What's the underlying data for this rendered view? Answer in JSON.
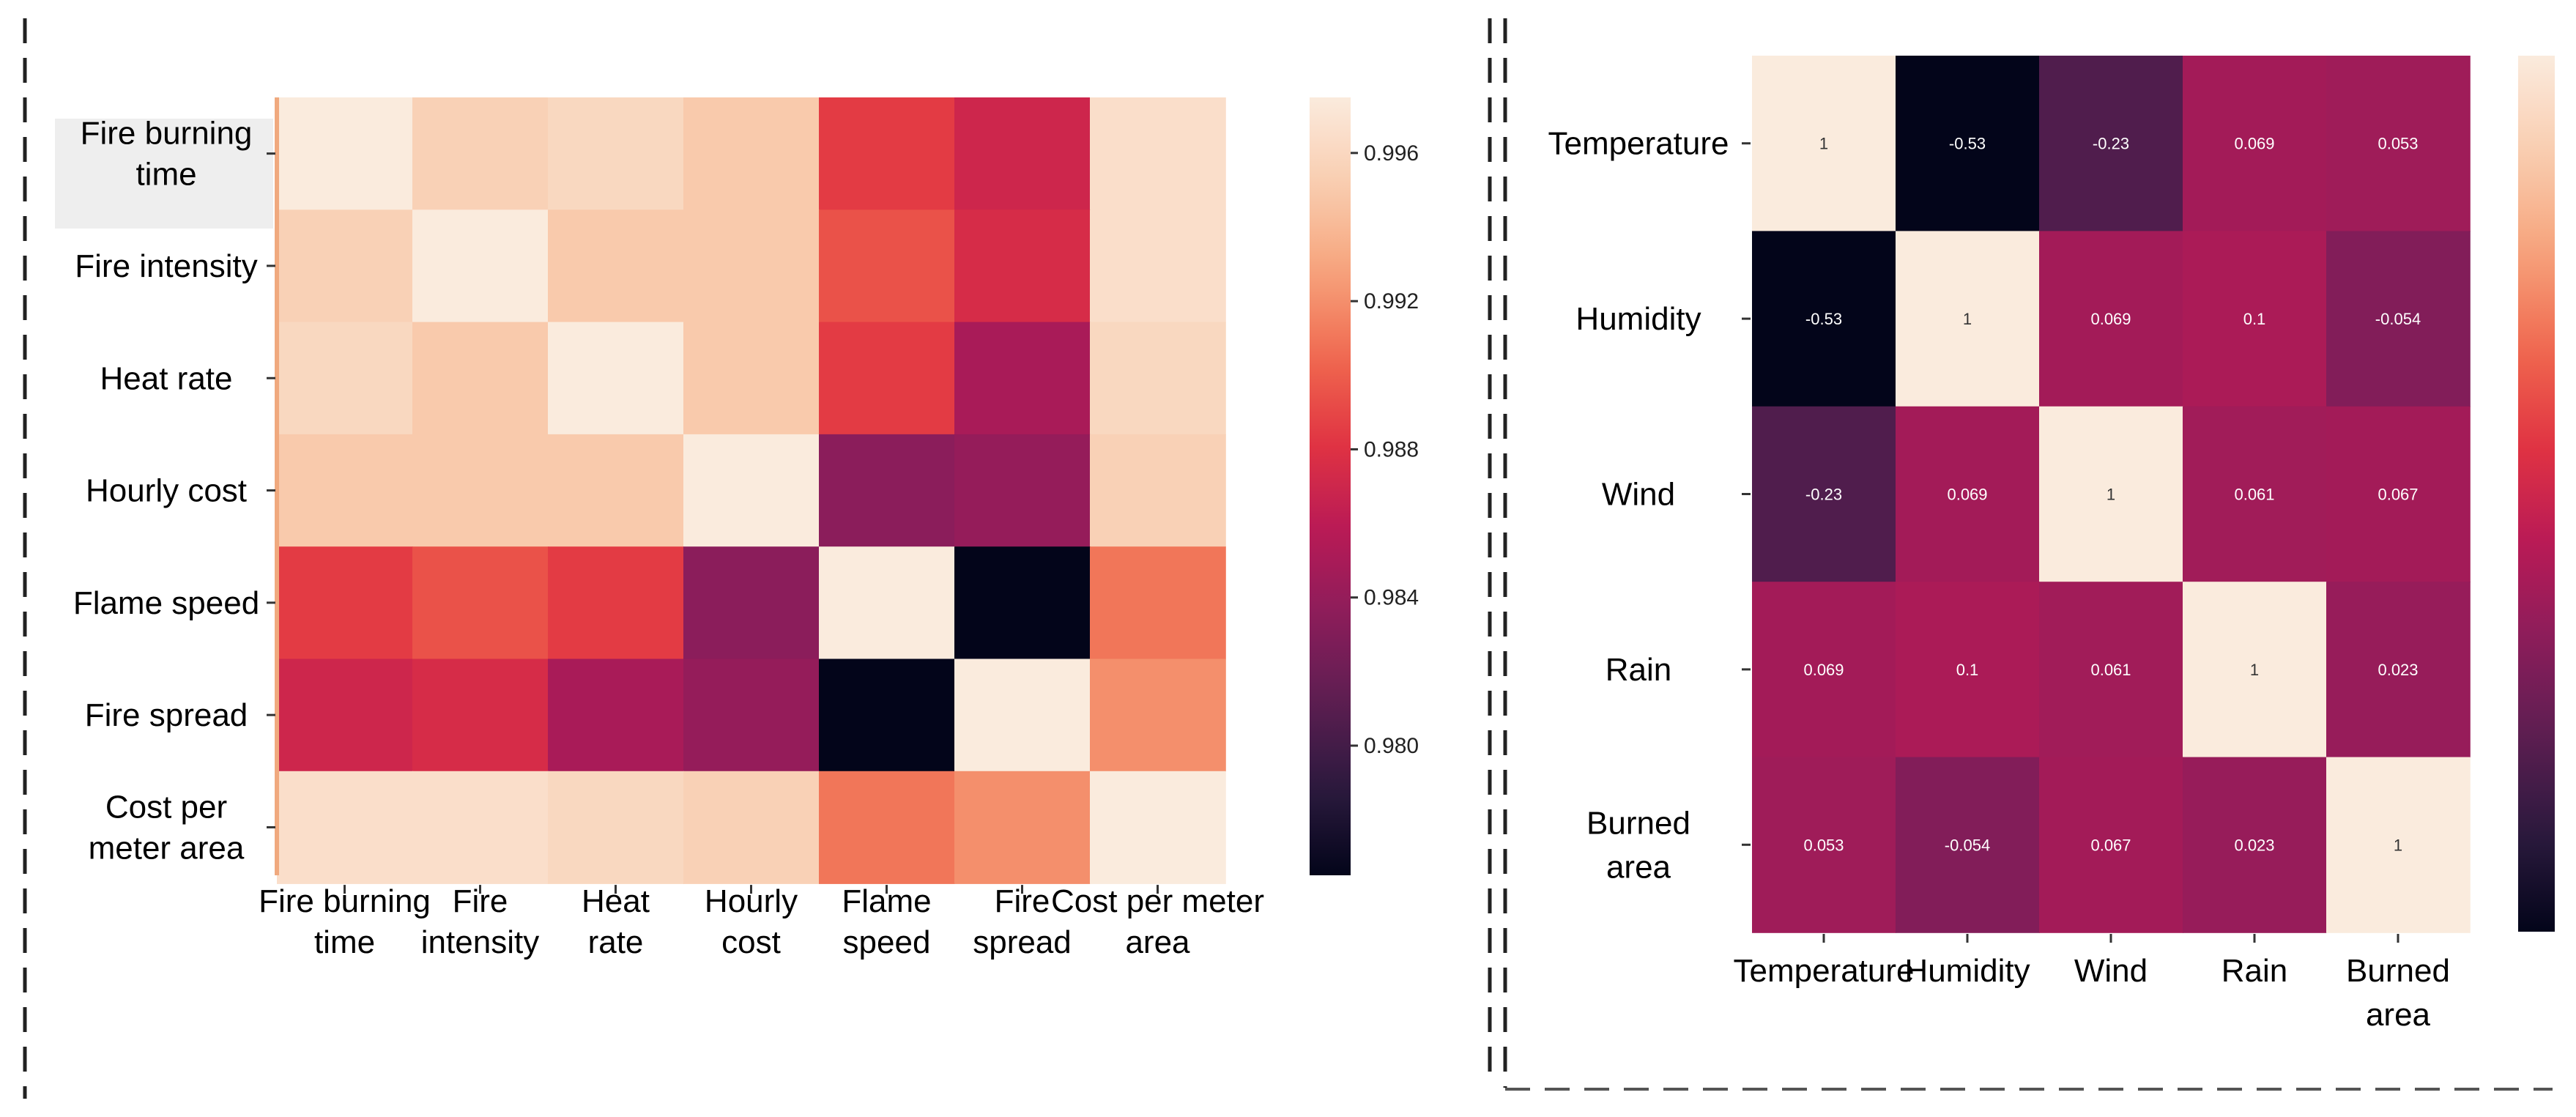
{
  "chart_data": [
    {
      "type": "heatmap",
      "title": "",
      "rows": [
        "Fire burning time",
        "Fire intensity",
        "Heat rate",
        "Hourly cost",
        "Flame speed",
        "Fire spread",
        "Cost per meter area"
      ],
      "columns": [
        "Fire burning time",
        "Fire intensity",
        "Heat rate",
        "Hourly cost",
        "Flame speed",
        "Fire spread",
        "Cost per meter area"
      ],
      "row_label_lines": [
        [
          "Fire burning",
          "time"
        ],
        [
          "Fire intensity"
        ],
        [
          "Heat rate"
        ],
        [
          "Hourly cost"
        ],
        [
          "Flame speed"
        ],
        [
          "Fire spread"
        ],
        [
          "Cost per",
          "meter area"
        ]
      ],
      "col_label_lines": [
        [
          "Fire burning",
          "time"
        ],
        [
          "Fire",
          "intensity"
        ],
        [
          "Heat",
          "rate"
        ],
        [
          "Hourly",
          "cost"
        ],
        [
          "Flame",
          "speed"
        ],
        [
          "Fire",
          "spread"
        ],
        [
          "Cost per meter",
          "area"
        ]
      ],
      "values": [
        [
          0.9975,
          0.9955,
          0.996,
          0.995,
          0.9885,
          0.987,
          0.9965
        ],
        [
          0.9955,
          0.9975,
          0.995,
          0.995,
          0.9895,
          0.9875,
          0.9965
        ],
        [
          0.996,
          0.995,
          0.9975,
          0.995,
          0.9885,
          0.985,
          0.996
        ],
        [
          0.995,
          0.995,
          0.995,
          0.9975,
          0.9835,
          0.984,
          0.9955
        ],
        [
          0.9885,
          0.9895,
          0.9885,
          0.9835,
          0.9975,
          0.9765,
          0.991
        ],
        [
          0.987,
          0.9875,
          0.985,
          0.984,
          0.9765,
          0.9975,
          0.992
        ],
        [
          0.9965,
          0.9965,
          0.996,
          0.9955,
          0.991,
          0.992,
          0.9975
        ]
      ],
      "vmin": 0.9765,
      "vmax": 0.9975,
      "colorbar_ticks": [
        "0.980",
        "0.984",
        "0.988",
        "0.992",
        "0.996"
      ],
      "highlighted_row_label": "Fire burning time",
      "annotated": false
    },
    {
      "type": "heatmap",
      "title": "",
      "rows": [
        "Temperature",
        "Humidity",
        "Wind",
        "Rain",
        "Burned area"
      ],
      "columns": [
        "Temperature",
        "Humidity",
        "Wind",
        "Rain",
        "Burned area"
      ],
      "row_label_lines": [
        [
          "Temperature"
        ],
        [
          "Humidity"
        ],
        [
          "Wind"
        ],
        [
          "Rain"
        ],
        [
          "Burned",
          "area"
        ]
      ],
      "col_label_lines": [
        [
          "Temperature"
        ],
        [
          "Humidity"
        ],
        [
          "Wind"
        ],
        [
          "Rain"
        ],
        [
          "Burned",
          "area"
        ]
      ],
      "values": [
        [
          1,
          -0.53,
          -0.23,
          0.069,
          0.053
        ],
        [
          -0.53,
          1,
          0.069,
          0.1,
          -0.054
        ],
        [
          -0.23,
          0.069,
          1,
          0.061,
          0.067
        ],
        [
          0.069,
          0.1,
          0.061,
          1,
          0.023
        ],
        [
          0.053,
          -0.054,
          0.067,
          0.023,
          1
        ]
      ],
      "cell_text": [
        [
          "1",
          "-0.53",
          "-0.23",
          "0.069",
          "0.053"
        ],
        [
          "-0.53",
          "1",
          "0.069",
          "0.1",
          "-0.054"
        ],
        [
          "-0.23",
          "0.069",
          "1",
          "0.061",
          "0.067"
        ],
        [
          "0.069",
          "0.1",
          "0.061",
          "1",
          "0.023"
        ],
        [
          "0.053",
          "-0.054",
          "0.067",
          "0.023",
          "1"
        ]
      ],
      "vmin": -0.53,
      "vmax": 1,
      "colorbar_ticks": [],
      "annotated": true
    }
  ],
  "colors": {
    "colormap": [
      "#03051a",
      "#2b1a3e",
      "#5c1e51",
      "#8b1d5b",
      "#b91a56",
      "#e13342",
      "#f0694f",
      "#f6a47c",
      "#f9cdb0",
      "#faebdd"
    ],
    "highlight_background": "#eeeeee",
    "dashed_border": "#222222",
    "dashed_border_light": "#555555"
  }
}
